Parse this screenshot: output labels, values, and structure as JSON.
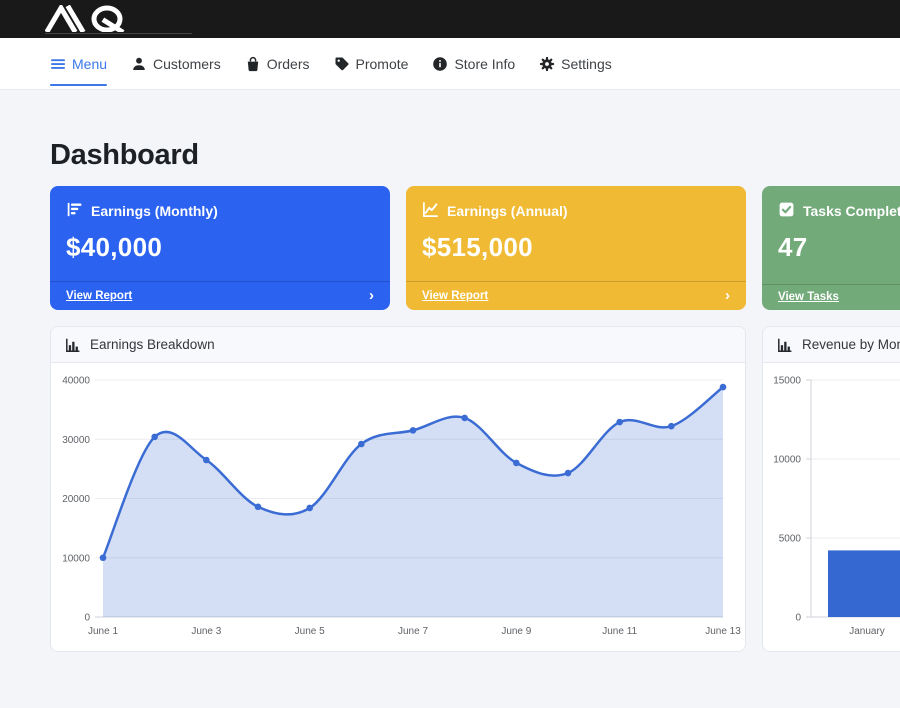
{
  "topbar": {
    "logo_name": "aq-monogram-logo"
  },
  "nav": {
    "active_color": "#3c78e7",
    "items": [
      {
        "label": "Menu",
        "icon": "hamburger-icon",
        "active": true
      },
      {
        "label": "Customers",
        "icon": "user-icon",
        "active": false
      },
      {
        "label": "Orders",
        "icon": "shopping-bag-icon",
        "active": false
      },
      {
        "label": "Promote",
        "icon": "tag-icon",
        "active": false
      },
      {
        "label": "Store Info",
        "icon": "info-icon",
        "active": false
      },
      {
        "label": "Settings",
        "icon": "gear-icon",
        "active": false
      }
    ]
  },
  "page": {
    "title": "Dashboard"
  },
  "cards": [
    {
      "title": "Earnings (Monthly)",
      "value": "$40,000",
      "link_label": "View Report",
      "chevron": "›",
      "color": "#2b62f0",
      "icon": "bar-chart-icon"
    },
    {
      "title": "Earnings (Annual)",
      "value": "$515,000",
      "link_label": "View Report",
      "chevron": "›",
      "color": "#f0ba35",
      "icon": "line-chart-icon"
    },
    {
      "title": "Tasks Completed",
      "value": "47",
      "link_label": "View Tasks",
      "chevron": "",
      "color": "#72aa7a",
      "icon": "check-square-icon"
    }
  ],
  "panels": [
    {
      "title": "Earnings Breakdown",
      "icon": "bar-chart-icon"
    },
    {
      "title": "Revenue by Month",
      "icon": "bar-chart-icon"
    }
  ],
  "chart_data": [
    {
      "type": "area",
      "title": "Earnings Breakdown",
      "x": [
        "June 1",
        "June 2",
        "June 3",
        "June 4",
        "June 5",
        "June 6",
        "June 7",
        "June 8",
        "June 9",
        "June 10",
        "June 11",
        "June 12",
        "June 13"
      ],
      "values": [
        10000,
        30400,
        26500,
        18600,
        18400,
        29200,
        31500,
        33600,
        26000,
        24300,
        32900,
        32200,
        38800
      ],
      "ylim": [
        0,
        40000
      ],
      "yticks": [
        0,
        10000,
        20000,
        30000,
        40000
      ],
      "xtick_every": 2,
      "line_color": "#3b6cd4",
      "fill_color": "rgba(59,108,212,0.22)",
      "grid": true,
      "legend": false
    },
    {
      "type": "bar",
      "title": "Revenue by Month",
      "categories": [
        "January"
      ],
      "values": [
        4215
      ],
      "ylim": [
        0,
        15000
      ],
      "yticks": [
        0,
        5000,
        10000,
        15000
      ],
      "bar_color": "#3668d2",
      "grid": true,
      "legend": false
    }
  ]
}
